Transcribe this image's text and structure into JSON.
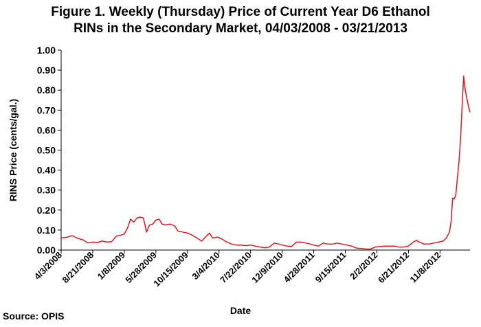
{
  "chart_data": {
    "type": "line",
    "title_lines": [
      "Figure 1. Weekly (Thursday) Price of Current Year D6 Ethanol",
      "RINs in the Secondary Market, 04/03/2008 - 03/21/2013"
    ],
    "xlabel": "Date",
    "ylabel": "RINS Price (cents/gal.)",
    "ylim": [
      0,
      1.0
    ],
    "y_ticks": [
      "0.00",
      "0.10",
      "0.20",
      "0.30",
      "0.40",
      "0.50",
      "0.60",
      "0.70",
      "0.80",
      "0.90",
      "1.00"
    ],
    "x_ticks": [
      "4/3/2008",
      "8/21/2008",
      "1/8/2009",
      "5/28/2009",
      "10/15/2009",
      "3/4/2010",
      "7/22/2010",
      "12/9/2010",
      "4/28/2011",
      "9/15/2011",
      "2/2/2012",
      "6/21/2012",
      "11/8/2012"
    ],
    "grid": false,
    "line_color": "#e8141b",
    "series": [
      {
        "values": [
          [
            "2008-04-03",
            0.06
          ],
          [
            "2008-05-01",
            0.065
          ],
          [
            "2008-05-22",
            0.072
          ],
          [
            "2008-06-12",
            0.06
          ],
          [
            "2008-07-10",
            0.05
          ],
          [
            "2008-07-31",
            0.035
          ],
          [
            "2008-08-21",
            0.04
          ],
          [
            "2008-09-11",
            0.038
          ],
          [
            "2008-10-02",
            0.045
          ],
          [
            "2008-10-23",
            0.04
          ],
          [
            "2008-11-13",
            0.042
          ],
          [
            "2008-12-04",
            0.07
          ],
          [
            "2008-12-25",
            0.075
          ],
          [
            "2009-01-08",
            0.08
          ],
          [
            "2009-01-22",
            0.11
          ],
          [
            "2009-02-05",
            0.155
          ],
          [
            "2009-02-19",
            0.14
          ],
          [
            "2009-03-05",
            0.16
          ],
          [
            "2009-03-19",
            0.165
          ],
          [
            "2009-04-02",
            0.16
          ],
          [
            "2009-04-09",
            0.13
          ],
          [
            "2009-04-16",
            0.09
          ],
          [
            "2009-04-30",
            0.125
          ],
          [
            "2009-05-14",
            0.13
          ],
          [
            "2009-05-28",
            0.15
          ],
          [
            "2009-06-11",
            0.155
          ],
          [
            "2009-06-25",
            0.13
          ],
          [
            "2009-07-09",
            0.125
          ],
          [
            "2009-07-30",
            0.13
          ],
          [
            "2009-08-20",
            0.12
          ],
          [
            "2009-09-03",
            0.095
          ],
          [
            "2009-09-24",
            0.09
          ],
          [
            "2009-10-15",
            0.085
          ],
          [
            "2009-11-05",
            0.075
          ],
          [
            "2009-11-26",
            0.06
          ],
          [
            "2009-12-17",
            0.045
          ],
          [
            "2010-01-07",
            0.07
          ],
          [
            "2010-01-21",
            0.085
          ],
          [
            "2010-02-04",
            0.06
          ],
          [
            "2010-02-25",
            0.065
          ],
          [
            "2010-03-18",
            0.055
          ],
          [
            "2010-04-08",
            0.04
          ],
          [
            "2010-04-29",
            0.03
          ],
          [
            "2010-05-20",
            0.025
          ],
          [
            "2010-06-10",
            0.025
          ],
          [
            "2010-07-01",
            0.022
          ],
          [
            "2010-07-22",
            0.025
          ],
          [
            "2010-08-12",
            0.02
          ],
          [
            "2010-09-02",
            0.015
          ],
          [
            "2010-09-23",
            0.012
          ],
          [
            "2010-10-14",
            0.015
          ],
          [
            "2010-11-04",
            0.035
          ],
          [
            "2010-11-25",
            0.03
          ],
          [
            "2010-12-09",
            0.025
          ],
          [
            "2010-12-30",
            0.02
          ],
          [
            "2011-01-20",
            0.018
          ],
          [
            "2011-02-10",
            0.04
          ],
          [
            "2011-03-03",
            0.04
          ],
          [
            "2011-03-24",
            0.035
          ],
          [
            "2011-04-14",
            0.03
          ],
          [
            "2011-04-28",
            0.025
          ],
          [
            "2011-05-19",
            0.02
          ],
          [
            "2011-06-09",
            0.035
          ],
          [
            "2011-06-30",
            0.03
          ],
          [
            "2011-07-21",
            0.03
          ],
          [
            "2011-08-11",
            0.035
          ],
          [
            "2011-09-01",
            0.03
          ],
          [
            "2011-09-22",
            0.025
          ],
          [
            "2011-10-13",
            0.02
          ],
          [
            "2011-11-03",
            0.01
          ],
          [
            "2011-11-24",
            0.008
          ],
          [
            "2011-12-15",
            0.005
          ],
          [
            "2012-01-05",
            0.005
          ],
          [
            "2012-01-26",
            0.015
          ],
          [
            "2012-02-16",
            0.018
          ],
          [
            "2012-03-08",
            0.02
          ],
          [
            "2012-03-29",
            0.02
          ],
          [
            "2012-04-19",
            0.02
          ],
          [
            "2012-05-10",
            0.015
          ],
          [
            "2012-05-31",
            0.015
          ],
          [
            "2012-06-21",
            0.02
          ],
          [
            "2012-07-12",
            0.04
          ],
          [
            "2012-07-26",
            0.048
          ],
          [
            "2012-08-09",
            0.04
          ],
          [
            "2012-08-30",
            0.03
          ],
          [
            "2012-09-20",
            0.03
          ],
          [
            "2012-10-11",
            0.035
          ],
          [
            "2012-11-01",
            0.04
          ],
          [
            "2012-11-22",
            0.045
          ],
          [
            "2012-12-06",
            0.06
          ],
          [
            "2012-12-20",
            0.09
          ],
          [
            "2012-12-27",
            0.14
          ],
          [
            "2013-01-03",
            0.26
          ],
          [
            "2013-01-10",
            0.255
          ],
          [
            "2013-01-17",
            0.275
          ],
          [
            "2013-01-24",
            0.36
          ],
          [
            "2013-01-31",
            0.44
          ],
          [
            "2013-02-07",
            0.55
          ],
          [
            "2013-02-14",
            0.72
          ],
          [
            "2013-02-21",
            0.87
          ],
          [
            "2013-02-28",
            0.8
          ],
          [
            "2013-03-07",
            0.76
          ],
          [
            "2013-03-14",
            0.72
          ],
          [
            "2013-03-21",
            0.69
          ]
        ]
      }
    ]
  },
  "source": "Source: OPIS"
}
